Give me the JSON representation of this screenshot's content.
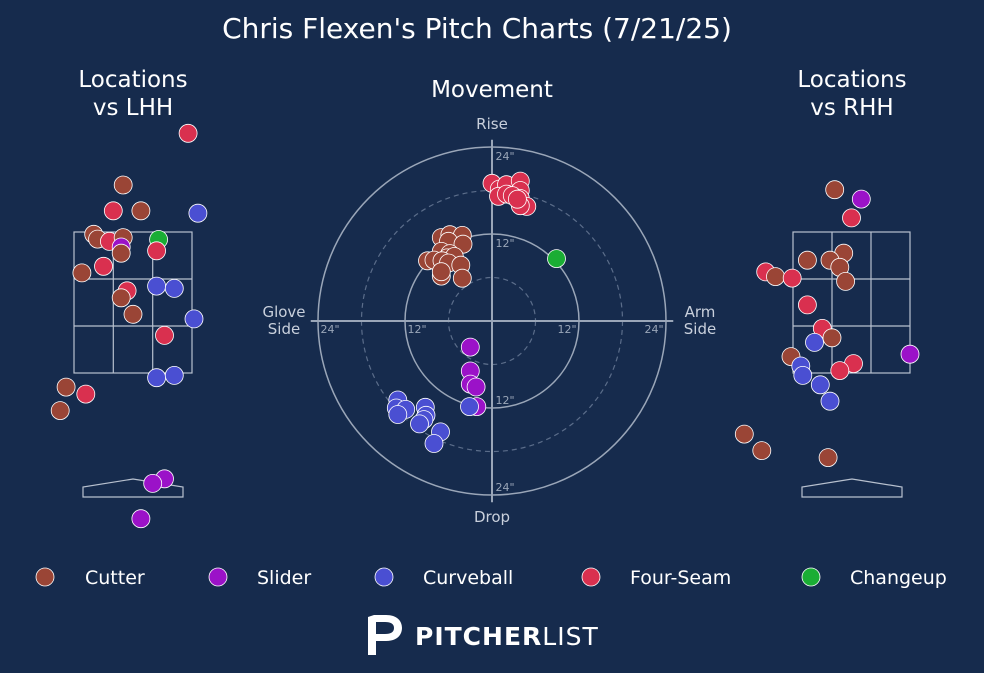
{
  "title": "Chris Flexen's Pitch Charts (7/21/25)",
  "panels": {
    "lhh_title_line1": "Locations",
    "lhh_title_line2": "vs LHH",
    "movement_title": "Movement",
    "rhh_title_line1": "Locations",
    "rhh_title_line2": "vs RHH"
  },
  "movement_axes": {
    "top": "Rise",
    "bottom": "Drop",
    "left_line1": "Glove",
    "left_line2": "Side",
    "right_line1": "Arm",
    "right_line2": "Side",
    "ring_inner": "12\"",
    "ring_outer": "24\""
  },
  "pitch_types": [
    {
      "name": "Cutter",
      "color": "#9a4536"
    },
    {
      "name": "Slider",
      "color": "#9b12c8"
    },
    {
      "name": "Curveball",
      "color": "#4a4fd2"
    },
    {
      "name": "Four-Seam",
      "color": "#d9304f"
    },
    {
      "name": "Changeup",
      "color": "#1aad34"
    }
  ],
  "brand": {
    "bold": "PITCHER",
    "light": "LIST"
  },
  "chart_data": [
    {
      "type": "scatter",
      "title": "Locations vs LHH",
      "units": "strike-zone grid (x: 0-3 columns, y: 0-3 rows from top)",
      "points": [
        {
          "type": "Four-Seam",
          "x": 2.9,
          "y": -2.1
        },
        {
          "type": "Cutter",
          "x": 1.25,
          "y": -1.0
        },
        {
          "type": "Four-Seam",
          "x": 1.0,
          "y": -0.45
        },
        {
          "type": "Cutter",
          "x": 1.7,
          "y": -0.45
        },
        {
          "type": "Curveball",
          "x": 3.15,
          "y": -0.4
        },
        {
          "type": "Cutter",
          "x": 0.5,
          "y": 0.05
        },
        {
          "type": "Cutter",
          "x": 0.6,
          "y": 0.15
        },
        {
          "type": "Four-Seam",
          "x": 0.9,
          "y": 0.2
        },
        {
          "type": "Cutter",
          "x": 1.25,
          "y": 0.12
        },
        {
          "type": "Slider",
          "x": 1.2,
          "y": 0.32
        },
        {
          "type": "Changeup",
          "x": 2.15,
          "y": 0.16
        },
        {
          "type": "Cutter",
          "x": 1.2,
          "y": 0.45
        },
        {
          "type": "Four-Seam",
          "x": 2.1,
          "y": 0.4
        },
        {
          "type": "Four-Seam",
          "x": 0.75,
          "y": 0.73
        },
        {
          "type": "Cutter",
          "x": 0.2,
          "y": 0.87
        },
        {
          "type": "Curveball",
          "x": 2.1,
          "y": 1.15
        },
        {
          "type": "Curveball",
          "x": 2.55,
          "y": 1.2
        },
        {
          "type": "Four-Seam",
          "x": 1.35,
          "y": 1.25
        },
        {
          "type": "Cutter",
          "x": 1.2,
          "y": 1.4
        },
        {
          "type": "Cutter",
          "x": 1.5,
          "y": 1.75
        },
        {
          "type": "Curveball",
          "x": 3.05,
          "y": 1.85
        },
        {
          "type": "Four-Seam",
          "x": 2.3,
          "y": 2.2
        },
        {
          "type": "Curveball",
          "x": 2.1,
          "y": 3.1
        },
        {
          "type": "Curveball",
          "x": 2.55,
          "y": 3.05
        },
        {
          "type": "Cutter",
          "x": -0.2,
          "y": 3.3
        },
        {
          "type": "Four-Seam",
          "x": 0.3,
          "y": 3.45
        },
        {
          "type": "Cutter",
          "x": -0.35,
          "y": 3.8
        },
        {
          "type": "Slider",
          "x": 2.3,
          "y": 5.25
        },
        {
          "type": "Slider",
          "x": 2.0,
          "y": 5.35
        },
        {
          "type": "Slider",
          "x": 1.7,
          "y": 6.1
        }
      ]
    },
    {
      "type": "scatter",
      "title": "Movement",
      "units": "inches (x: arm side +, y: rise +)",
      "ring_radii": [
        6,
        12,
        18,
        24
      ],
      "points": [
        {
          "type": "Four-Seam",
          "x": 0.0,
          "y": 19.0
        },
        {
          "type": "Four-Seam",
          "x": 1.0,
          "y": 18.2
        },
        {
          "type": "Four-Seam",
          "x": 2.0,
          "y": 18.8
        },
        {
          "type": "Four-Seam",
          "x": 3.9,
          "y": 19.3
        },
        {
          "type": "Four-Seam",
          "x": 3.9,
          "y": 18.0
        },
        {
          "type": "Four-Seam",
          "x": 0.9,
          "y": 17.2
        },
        {
          "type": "Four-Seam",
          "x": 2.0,
          "y": 17.5
        },
        {
          "type": "Four-Seam",
          "x": 2.8,
          "y": 17.3
        },
        {
          "type": "Four-Seam",
          "x": 3.9,
          "y": 16.9
        },
        {
          "type": "Four-Seam",
          "x": 4.8,
          "y": 15.8
        },
        {
          "type": "Four-Seam",
          "x": 3.9,
          "y": 15.9
        },
        {
          "type": "Four-Seam",
          "x": 3.5,
          "y": 16.8
        },
        {
          "type": "Changeup",
          "x": 8.9,
          "y": 8.6
        },
        {
          "type": "Cutter",
          "x": -7.0,
          "y": 11.5
        },
        {
          "type": "Cutter",
          "x": -5.8,
          "y": 11.9
        },
        {
          "type": "Cutter",
          "x": -4.1,
          "y": 11.8
        },
        {
          "type": "Cutter",
          "x": -6.0,
          "y": 11.0
        },
        {
          "type": "Cutter",
          "x": -4.0,
          "y": 10.6
        },
        {
          "type": "Cutter",
          "x": -7.0,
          "y": 9.6
        },
        {
          "type": "Cutter",
          "x": -5.8,
          "y": 9.3
        },
        {
          "type": "Cutter",
          "x": -6.2,
          "y": 8.7
        },
        {
          "type": "Cutter",
          "x": -5.2,
          "y": 8.9
        },
        {
          "type": "Cutter",
          "x": -8.9,
          "y": 8.3
        },
        {
          "type": "Cutter",
          "x": -8.0,
          "y": 8.4
        },
        {
          "type": "Cutter",
          "x": -6.9,
          "y": 8.3
        },
        {
          "type": "Cutter",
          "x": -6.0,
          "y": 8.0
        },
        {
          "type": "Cutter",
          "x": -4.3,
          "y": 7.7
        },
        {
          "type": "Cutter",
          "x": -7.0,
          "y": 6.2
        },
        {
          "type": "Cutter",
          "x": -4.1,
          "y": 5.9
        },
        {
          "type": "Cutter",
          "x": -7.0,
          "y": 6.8
        },
        {
          "type": "Slider",
          "x": -3.0,
          "y": -3.6
        },
        {
          "type": "Slider",
          "x": -3.0,
          "y": -6.9
        },
        {
          "type": "Slider",
          "x": -3.0,
          "y": -8.7
        },
        {
          "type": "Slider",
          "x": -2.2,
          "y": -9.1
        },
        {
          "type": "Slider",
          "x": -2.1,
          "y": -11.8
        },
        {
          "type": "Curveball",
          "x": -3.1,
          "y": -11.8
        },
        {
          "type": "Curveball",
          "x": -13.0,
          "y": -10.9
        },
        {
          "type": "Curveball",
          "x": -13.2,
          "y": -12.0
        },
        {
          "type": "Curveball",
          "x": -11.9,
          "y": -12.2
        },
        {
          "type": "Curveball",
          "x": -13.0,
          "y": -12.9
        },
        {
          "type": "Curveball",
          "x": -9.2,
          "y": -11.9
        },
        {
          "type": "Curveball",
          "x": -9.1,
          "y": -13.0
        },
        {
          "type": "Curveball",
          "x": -9.4,
          "y": -13.6
        },
        {
          "type": "Curveball",
          "x": -10.0,
          "y": -14.2
        },
        {
          "type": "Curveball",
          "x": -7.1,
          "y": -15.3
        },
        {
          "type": "Curveball",
          "x": -8.0,
          "y": -16.9
        }
      ]
    },
    {
      "type": "scatter",
      "title": "Locations vs RHH",
      "units": "strike-zone grid (x: 0-3 columns, y: 0-3 rows from top)",
      "points": [
        {
          "type": "Cutter",
          "x": 1.07,
          "y": -0.9
        },
        {
          "type": "Slider",
          "x": 1.75,
          "y": -0.7
        },
        {
          "type": "Four-Seam",
          "x": 1.5,
          "y": -0.3
        },
        {
          "type": "Cutter",
          "x": 1.3,
          "y": 0.45
        },
        {
          "type": "Cutter",
          "x": 0.37,
          "y": 0.6
        },
        {
          "type": "Cutter",
          "x": 0.95,
          "y": 0.6
        },
        {
          "type": "Cutter",
          "x": 1.2,
          "y": 0.75
        },
        {
          "type": "Cutter",
          "x": 1.35,
          "y": 1.05
        },
        {
          "type": "Four-Seam",
          "x": -0.7,
          "y": 0.85
        },
        {
          "type": "Cutter",
          "x": -0.45,
          "y": 0.95
        },
        {
          "type": "Four-Seam",
          "x": -0.02,
          "y": 0.98
        },
        {
          "type": "Four-Seam",
          "x": 0.37,
          "y": 1.55
        },
        {
          "type": "Four-Seam",
          "x": 0.75,
          "y": 2.05
        },
        {
          "type": "Cutter",
          "x": 1.0,
          "y": 2.25
        },
        {
          "type": "Curveball",
          "x": 0.55,
          "y": 2.35
        },
        {
          "type": "Slider",
          "x": 3.0,
          "y": 2.6
        },
        {
          "type": "Cutter",
          "x": -0.05,
          "y": 2.65
        },
        {
          "type": "Four-Seam",
          "x": 1.55,
          "y": 2.8
        },
        {
          "type": "Four-Seam",
          "x": 1.2,
          "y": 2.95
        },
        {
          "type": "Curveball",
          "x": 0.2,
          "y": 2.85
        },
        {
          "type": "Curveball",
          "x": 0.25,
          "y": 3.05
        },
        {
          "type": "Curveball",
          "x": 0.7,
          "y": 3.25
        },
        {
          "type": "Curveball",
          "x": 0.95,
          "y": 3.6
        },
        {
          "type": "Cutter",
          "x": -1.25,
          "y": 4.3
        },
        {
          "type": "Cutter",
          "x": -0.8,
          "y": 4.65
        },
        {
          "type": "Cutter",
          "x": 0.9,
          "y": 4.8
        }
      ]
    }
  ]
}
